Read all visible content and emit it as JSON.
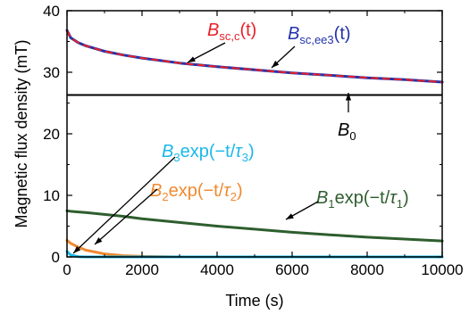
{
  "colors": {
    "red": "#e8202a",
    "blue": "#2233aa",
    "green": "#2e5e2e",
    "orange": "#f08a30",
    "cyan": "#1ab8e8",
    "black": "#000000"
  },
  "chart_data": {
    "type": "line",
    "xlabel": "Time (s)",
    "ylabel": "Magnetic flux density (mT)",
    "xlim": [
      0,
      10000
    ],
    "ylim": [
      0,
      40
    ],
    "xticks": [
      0,
      2000,
      4000,
      6000,
      8000,
      10000
    ],
    "yticks": [
      0,
      10,
      20,
      30,
      40
    ],
    "x": [
      0,
      100,
      300,
      500,
      1000,
      1500,
      2000,
      3000,
      4000,
      5000,
      6000,
      7000,
      8000,
      9000,
      10000
    ],
    "series": [
      {
        "name": "B_sc,ee3(t)",
        "color_key": "blue",
        "values": [
          36.8,
          35.6,
          34.8,
          34.3,
          33.4,
          32.8,
          32.3,
          31.5,
          30.9,
          30.4,
          29.9,
          29.5,
          29.1,
          28.8,
          28.4
        ]
      },
      {
        "name": "B_sc,c(t)",
        "color_key": "red",
        "dashed": true,
        "values": [
          36.8,
          35.6,
          34.8,
          34.3,
          33.4,
          32.8,
          32.3,
          31.5,
          30.9,
          30.4,
          29.9,
          29.5,
          29.1,
          28.8,
          28.4
        ]
      },
      {
        "name": "B1 exp(−t/τ1)",
        "color_key": "green",
        "values": [
          7.5,
          7.4,
          7.3,
          7.2,
          6.9,
          6.6,
          6.2,
          5.6,
          5.0,
          4.5,
          4.0,
          3.6,
          3.2,
          2.9,
          2.6
        ]
      },
      {
        "name": "B2 exp(−t/τ2)",
        "color_key": "orange",
        "values": [
          2.7,
          2.2,
          1.6,
          1.1,
          0.5,
          0.2,
          0.08,
          0.0,
          0.0,
          0.0,
          0.0,
          0.0,
          0.0,
          0.0,
          0.0
        ]
      },
      {
        "name": "B3 exp(−t/τ3)",
        "color_key": "cyan",
        "values": [
          0.9,
          0.3,
          0.05,
          0.0,
          0.0,
          0.0,
          0.0,
          0.0,
          0.0,
          0.0,
          0.0,
          0.0,
          0.0,
          0.0,
          0.0
        ]
      }
    ],
    "hline": {
      "name": "B0",
      "y": 26.3,
      "color_key": "black"
    },
    "annotations": {
      "bscc": {
        "main": "B",
        "sub": "sc,c",
        "arg": "(t)"
      },
      "bscee3": {
        "main": "B",
        "sub": "sc,ee3",
        "arg": "(t)"
      },
      "b0": {
        "main": "B",
        "sub": "0"
      },
      "b1": {
        "main": "B",
        "sub": "1",
        "mid": "exp(−t/",
        "tau": "τ",
        "tsub": "1",
        "end": ")"
      },
      "b2": {
        "main": "B",
        "sub": "2",
        "mid": "exp(−t/",
        "tau": "τ",
        "tsub": "2",
        "end": ")"
      },
      "b3": {
        "main": "B",
        "sub": "3",
        "mid": "exp(−t/",
        "tau": "τ",
        "tsub": "3",
        "end": ")"
      }
    }
  }
}
